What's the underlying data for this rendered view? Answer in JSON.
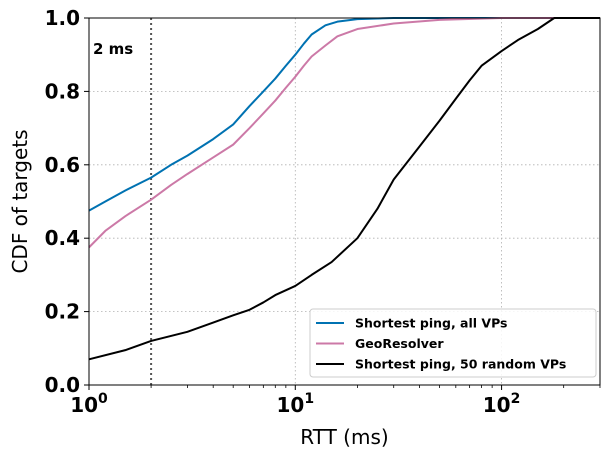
{
  "chart_data": {
    "type": "line",
    "xscale": "log",
    "xlim": [
      1,
      300
    ],
    "ylim": [
      0,
      1
    ],
    "xlabel": "RTT (ms)",
    "ylabel": "CDF of targets",
    "grid": true,
    "legend_position": "lower-right",
    "x_ticks": [
      {
        "value": 1,
        "base": "10",
        "exp": "0"
      },
      {
        "value": 10,
        "base": "10",
        "exp": "1"
      },
      {
        "value": 100,
        "base": "10",
        "exp": "2"
      }
    ],
    "y_ticks": [
      {
        "value": 0.0,
        "label": "0.0"
      },
      {
        "value": 0.2,
        "label": "0.2"
      },
      {
        "value": 0.4,
        "label": "0.4"
      },
      {
        "value": 0.6,
        "label": "0.6"
      },
      {
        "value": 0.8,
        "label": "0.8"
      },
      {
        "value": 1.0,
        "label": "1.0"
      }
    ],
    "vline": {
      "x": 2,
      "label": "2 ms",
      "color": "#555555"
    },
    "series": [
      {
        "name": "Shortest ping, all VPs",
        "color": "#0072b2",
        "points": [
          [
            1,
            0.475
          ],
          [
            1.2,
            0.5
          ],
          [
            1.5,
            0.53
          ],
          [
            2,
            0.565
          ],
          [
            2.5,
            0.6
          ],
          [
            3,
            0.625
          ],
          [
            4,
            0.67
          ],
          [
            5,
            0.71
          ],
          [
            6,
            0.76
          ],
          [
            7,
            0.8
          ],
          [
            8,
            0.835
          ],
          [
            9,
            0.87
          ],
          [
            10,
            0.9
          ],
          [
            11,
            0.93
          ],
          [
            12,
            0.955
          ],
          [
            14,
            0.98
          ],
          [
            16,
            0.99
          ],
          [
            20,
            0.997
          ],
          [
            30,
            1.0
          ],
          [
            300,
            1.0
          ]
        ]
      },
      {
        "name": "GeoResolver",
        "color": "#cc79a7",
        "points": [
          [
            1,
            0.375
          ],
          [
            1.2,
            0.42
          ],
          [
            1.5,
            0.46
          ],
          [
            2,
            0.505
          ],
          [
            2.5,
            0.545
          ],
          [
            3,
            0.575
          ],
          [
            4,
            0.62
          ],
          [
            5,
            0.655
          ],
          [
            6,
            0.7
          ],
          [
            7,
            0.74
          ],
          [
            8,
            0.775
          ],
          [
            9,
            0.81
          ],
          [
            10,
            0.84
          ],
          [
            11,
            0.87
          ],
          [
            12,
            0.895
          ],
          [
            14,
            0.925
          ],
          [
            16,
            0.95
          ],
          [
            20,
            0.97
          ],
          [
            30,
            0.985
          ],
          [
            50,
            0.995
          ],
          [
            100,
            1.0
          ],
          [
            300,
            1.0
          ]
        ]
      },
      {
        "name": "Shortest ping, 50 random VPs",
        "color": "#000000",
        "points": [
          [
            1,
            0.07
          ],
          [
            1.5,
            0.095
          ],
          [
            2,
            0.12
          ],
          [
            3,
            0.145
          ],
          [
            4,
            0.17
          ],
          [
            5,
            0.19
          ],
          [
            6,
            0.205
          ],
          [
            7,
            0.225
          ],
          [
            8,
            0.245
          ],
          [
            10,
            0.27
          ],
          [
            12,
            0.3
          ],
          [
            15,
            0.335
          ],
          [
            20,
            0.4
          ],
          [
            25,
            0.48
          ],
          [
            30,
            0.56
          ],
          [
            40,
            0.65
          ],
          [
            50,
            0.72
          ],
          [
            60,
            0.78
          ],
          [
            70,
            0.83
          ],
          [
            80,
            0.87
          ],
          [
            100,
            0.91
          ],
          [
            120,
            0.94
          ],
          [
            150,
            0.97
          ],
          [
            180,
            1.0
          ],
          [
            300,
            1.0
          ]
        ]
      }
    ]
  }
}
